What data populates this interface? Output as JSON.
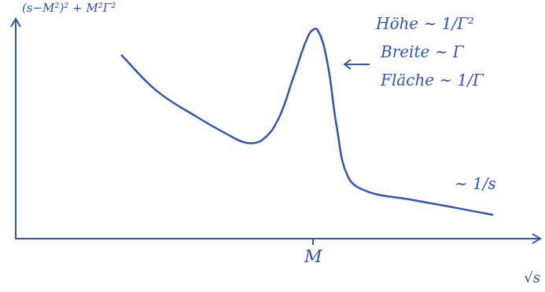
{
  "chart_data": {
    "type": "line",
    "x_label": "√s",
    "x": [
      2.01,
      2.69,
      3.43,
      4.03,
      4.4,
      4.7,
      5.0,
      5.3,
      5.6,
      5.75,
      5.94,
      6.12,
      6.34,
      6.72,
      7.46,
      8.21,
      9.1
    ],
    "values": [
      8.36,
      6.72,
      5.57,
      4.75,
      4.36,
      4.49,
      5.41,
      7.38,
      9.34,
      9.51,
      8.03,
      5.08,
      2.79,
      2.13,
      1.8,
      1.48,
      1.08
    ],
    "color": "#2f55b8",
    "xlim": [
      0,
      10
    ],
    "ylim": [
      0,
      10
    ],
    "xticks": [
      {
        "value": 5.67,
        "label": "M"
      }
    ],
    "tick_labels": "x",
    "grid": false,
    "annotations": [
      "(s−M²)² + M²Γ²",
      "Höhe ~ 1/Γ²",
      "Breite ~ Γ",
      "Fläche ~ 1/Γ",
      "~ 1/s"
    ]
  }
}
